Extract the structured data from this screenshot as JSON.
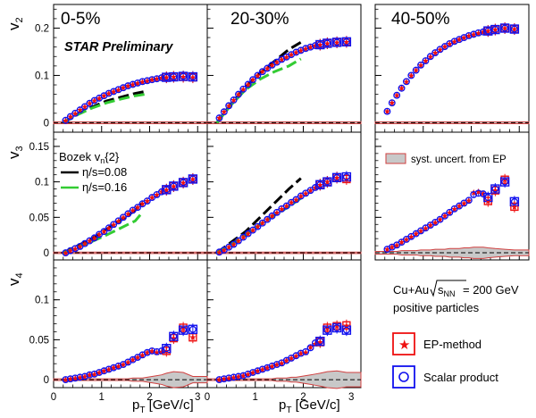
{
  "chart_data": {
    "type": "scatter",
    "panel_titles": [
      "0-5%",
      "20-30%",
      "40-50%"
    ],
    "watermark": "STAR Preliminary",
    "rows": [
      {
        "ylabel_main": "v",
        "ylabel_sub": "2",
        "ylim": [
          -0.02,
          0.25
        ],
        "ticks": [
          0,
          0.1,
          0.2
        ],
        "tick_labels": [
          "0",
          "0.1",
          "0.2"
        ]
      },
      {
        "ylabel_main": "v",
        "ylabel_sub": "3",
        "ylim": [
          -0.01,
          0.17
        ],
        "ticks": [
          0,
          0.05,
          0.1,
          0.15
        ],
        "tick_labels": [
          "0",
          "0.05",
          "0.1",
          "0.15"
        ]
      },
      {
        "ylabel_main": "v",
        "ylabel_sub": "4",
        "ylim": [
          -0.01,
          0.15
        ],
        "ticks": [
          0,
          0.05,
          0.1
        ],
        "tick_labels": [
          "0",
          "0.05",
          "0.1"
        ]
      }
    ],
    "xlim": [
      0,
      3.2
    ],
    "x_ticks": [
      0,
      1,
      2,
      3
    ],
    "x_tick_labels": [
      "0",
      "1",
      "2",
      "3"
    ],
    "xlabel_main": "p",
    "xlabel_sub": "T",
    "xlabel_unit": " [GeV/c]",
    "theory_legend": {
      "title_main": "Bozek v",
      "title_sub": "n",
      "title_tail": "{2}",
      "entries": [
        {
          "label": "η/s=0.08",
          "color": "#000000"
        },
        {
          "label": "η/s=0.16",
          "color": "#33cc33"
        }
      ]
    },
    "syst_legend_label": "syst. uncert. from EP",
    "info_line1": "Cu+Au",
    "info_sqrt": "s",
    "info_sqrt_sub": "NN",
    "info_energy": " = 200 GeV",
    "info_line2": "positive particles",
    "method_legend": [
      {
        "label": "EP-method",
        "color": "#ee1111",
        "marker": "star"
      },
      {
        "label": "Scalar product",
        "color": "#1111ee",
        "marker": "circle"
      }
    ],
    "panels": [
      {
        "row": 0,
        "col": 0,
        "x": [
          0.25,
          0.35,
          0.45,
          0.55,
          0.65,
          0.75,
          0.85,
          0.95,
          1.05,
          1.15,
          1.25,
          1.35,
          1.45,
          1.55,
          1.65,
          1.75,
          1.85,
          1.95,
          2.05,
          2.15,
          2.25,
          2.35,
          2.5,
          2.7,
          2.9
        ],
        "sp": [
          0.005,
          0.013,
          0.02,
          0.027,
          0.034,
          0.041,
          0.047,
          0.052,
          0.057,
          0.062,
          0.066,
          0.07,
          0.074,
          0.078,
          0.081,
          0.084,
          0.087,
          0.089,
          0.091,
          0.093,
          0.095,
          0.096,
          0.097,
          0.098,
          0.097
        ],
        "ep": [
          0.005,
          0.013,
          0.02,
          0.027,
          0.034,
          0.041,
          0.047,
          0.052,
          0.057,
          0.062,
          0.066,
          0.07,
          0.074,
          0.078,
          0.081,
          0.084,
          0.087,
          0.089,
          0.091,
          0.093,
          0.095,
          0.096,
          0.097,
          0.097,
          0.096
        ],
        "theory_black": {
          "x": [
            0.2,
            0.5,
            0.8,
            1.1,
            1.4,
            1.7,
            1.9
          ],
          "y": [
            0.0,
            0.018,
            0.033,
            0.046,
            0.054,
            0.062,
            0.066
          ]
        },
        "theory_green": {
          "x": [
            0.2,
            0.5,
            0.8,
            1.1,
            1.4,
            1.7,
            1.9
          ],
          "y": [
            0.0,
            0.017,
            0.031,
            0.042,
            0.05,
            0.057,
            0.06
          ]
        },
        "band": [
          0.002,
          0.002,
          0.002,
          0.002,
          0.002,
          0.002,
          0.002,
          0.002,
          0.002,
          0.002,
          0.002,
          0.002,
          0.002,
          0.002,
          0.002,
          0.002,
          0.002,
          0.002,
          0.002,
          0.002,
          0.002,
          0.002,
          0.002,
          0.002,
          0.002
        ]
      },
      {
        "row": 0,
        "col": 1,
        "x": [
          0.25,
          0.35,
          0.45,
          0.55,
          0.65,
          0.75,
          0.85,
          0.95,
          1.05,
          1.15,
          1.25,
          1.35,
          1.45,
          1.55,
          1.65,
          1.75,
          1.85,
          1.95,
          2.05,
          2.15,
          2.25,
          2.35,
          2.5,
          2.7,
          2.9
        ],
        "sp": [
          0.01,
          0.023,
          0.036,
          0.048,
          0.06,
          0.071,
          0.081,
          0.091,
          0.1,
          0.108,
          0.115,
          0.122,
          0.128,
          0.134,
          0.139,
          0.144,
          0.149,
          0.153,
          0.157,
          0.16,
          0.163,
          0.165,
          0.168,
          0.17,
          0.171
        ],
        "ep": [
          0.01,
          0.023,
          0.036,
          0.048,
          0.06,
          0.071,
          0.081,
          0.091,
          0.1,
          0.108,
          0.115,
          0.122,
          0.128,
          0.134,
          0.139,
          0.144,
          0.149,
          0.153,
          0.157,
          0.16,
          0.163,
          0.165,
          0.168,
          0.17,
          0.171
        ],
        "theory_black": {
          "x": [
            0.2,
            0.5,
            0.8,
            1.1,
            1.4,
            1.7,
            1.95
          ],
          "y": [
            0.0,
            0.04,
            0.075,
            0.105,
            0.13,
            0.155,
            0.17
          ]
        },
        "theory_green": {
          "x": [
            0.2,
            0.5,
            0.8,
            1.1,
            1.4,
            1.7,
            1.95
          ],
          "y": [
            0.0,
            0.038,
            0.07,
            0.092,
            0.108,
            0.12,
            0.135
          ]
        },
        "band": [
          0.002,
          0.002,
          0.002,
          0.002,
          0.002,
          0.002,
          0.002,
          0.002,
          0.002,
          0.002,
          0.002,
          0.002,
          0.002,
          0.002,
          0.002,
          0.002,
          0.002,
          0.002,
          0.002,
          0.002,
          0.002,
          0.002,
          0.002,
          0.002,
          0.002
        ]
      },
      {
        "row": 0,
        "col": 2,
        "x": [
          0.25,
          0.35,
          0.45,
          0.55,
          0.65,
          0.75,
          0.85,
          0.95,
          1.05,
          1.15,
          1.25,
          1.35,
          1.45,
          1.55,
          1.65,
          1.75,
          1.85,
          1.95,
          2.05,
          2.15,
          2.25,
          2.35,
          2.5,
          2.7,
          2.9
        ],
        "sp": [
          0.024,
          0.042,
          0.058,
          0.073,
          0.087,
          0.1,
          0.111,
          0.122,
          0.131,
          0.14,
          0.148,
          0.155,
          0.161,
          0.167,
          0.172,
          0.176,
          0.18,
          0.184,
          0.187,
          0.19,
          0.192,
          0.194,
          0.197,
          0.2,
          0.198
        ],
        "ep": [
          0.024,
          0.042,
          0.058,
          0.073,
          0.087,
          0.1,
          0.111,
          0.122,
          0.131,
          0.14,
          0.148,
          0.155,
          0.161,
          0.167,
          0.172,
          0.176,
          0.18,
          0.184,
          0.187,
          0.19,
          0.192,
          0.194,
          0.197,
          0.2,
          0.198
        ],
        "band": [
          0.002,
          0.002,
          0.002,
          0.002,
          0.002,
          0.002,
          0.002,
          0.002,
          0.002,
          0.002,
          0.002,
          0.002,
          0.002,
          0.002,
          0.002,
          0.002,
          0.002,
          0.002,
          0.002,
          0.002,
          0.002,
          0.002,
          0.002,
          0.002,
          0.002
        ]
      },
      {
        "row": 1,
        "col": 0,
        "x": [
          0.25,
          0.35,
          0.45,
          0.55,
          0.65,
          0.75,
          0.85,
          0.95,
          1.05,
          1.15,
          1.25,
          1.35,
          1.45,
          1.55,
          1.65,
          1.75,
          1.85,
          1.95,
          2.05,
          2.15,
          2.25,
          2.35,
          2.5,
          2.7,
          2.9
        ],
        "sp": [
          0.0,
          0.003,
          0.006,
          0.009,
          0.013,
          0.017,
          0.021,
          0.026,
          0.03,
          0.035,
          0.04,
          0.045,
          0.05,
          0.055,
          0.06,
          0.064,
          0.069,
          0.073,
          0.078,
          0.082,
          0.086,
          0.089,
          0.094,
          0.099,
          0.104
        ],
        "ep": [
          0.0,
          0.003,
          0.006,
          0.009,
          0.013,
          0.017,
          0.021,
          0.026,
          0.03,
          0.035,
          0.04,
          0.045,
          0.05,
          0.055,
          0.06,
          0.064,
          0.069,
          0.073,
          0.078,
          0.082,
          0.086,
          0.089,
          0.094,
          0.099,
          0.104
        ],
        "theory_black": {
          "x": [
            0.2,
            0.5,
            0.8,
            1.1,
            1.4,
            1.7,
            1.85
          ],
          "y": [
            0.0,
            0.01,
            0.02,
            0.033,
            0.046,
            0.06,
            0.07
          ]
        },
        "theory_green": {
          "x": [
            0.2,
            0.5,
            0.8,
            1.1,
            1.4,
            1.7,
            1.85
          ],
          "y": [
            0.0,
            0.008,
            0.016,
            0.025,
            0.035,
            0.045,
            0.057
          ]
        },
        "band": [
          0.001,
          0.001,
          0.001,
          0.001,
          0.001,
          0.001,
          0.001,
          0.001,
          0.001,
          0.001,
          0.001,
          0.001,
          0.001,
          0.001,
          0.001,
          0.001,
          0.001,
          0.001,
          0.001,
          0.001,
          0.001,
          0.001,
          0.001,
          0.001,
          0.001
        ]
      },
      {
        "row": 1,
        "col": 1,
        "x": [
          0.25,
          0.35,
          0.45,
          0.55,
          0.65,
          0.75,
          0.85,
          0.95,
          1.05,
          1.15,
          1.25,
          1.35,
          1.45,
          1.55,
          1.65,
          1.75,
          1.85,
          1.95,
          2.05,
          2.15,
          2.25,
          2.35,
          2.5,
          2.7,
          2.9
        ],
        "sp": [
          0.001,
          0.004,
          0.008,
          0.012,
          0.017,
          0.022,
          0.027,
          0.032,
          0.037,
          0.042,
          0.047,
          0.052,
          0.057,
          0.062,
          0.066,
          0.071,
          0.075,
          0.08,
          0.084,
          0.088,
          0.092,
          0.096,
          0.1,
          0.106,
          0.107
        ],
        "ep": [
          0.001,
          0.004,
          0.008,
          0.012,
          0.017,
          0.022,
          0.027,
          0.032,
          0.037,
          0.042,
          0.047,
          0.052,
          0.057,
          0.062,
          0.066,
          0.071,
          0.075,
          0.08,
          0.084,
          0.088,
          0.092,
          0.096,
          0.1,
          0.106,
          0.104
        ],
        "theory_black": {
          "x": [
            0.2,
            0.5,
            0.8,
            1.1,
            1.4,
            1.7,
            1.95
          ],
          "y": [
            0.0,
            0.015,
            0.03,
            0.05,
            0.07,
            0.09,
            0.105
          ]
        },
        "theory_green": {
          "x": [
            0.2,
            0.5,
            0.8,
            1.1,
            1.4,
            1.7,
            1.95
          ],
          "y": [
            0.0,
            0.012,
            0.025,
            0.04,
            0.053,
            0.065,
            0.077
          ]
        },
        "band": [
          0.001,
          0.001,
          0.001,
          0.001,
          0.001,
          0.001,
          0.001,
          0.001,
          0.001,
          0.001,
          0.001,
          0.001,
          0.001,
          0.001,
          0.001,
          0.001,
          0.001,
          0.001,
          0.001,
          0.001,
          0.001,
          0.001,
          0.001,
          0.001,
          0.001
        ]
      },
      {
        "row": 1,
        "col": 2,
        "x": [
          0.25,
          0.35,
          0.45,
          0.55,
          0.65,
          0.75,
          0.85,
          0.95,
          1.05,
          1.15,
          1.25,
          1.35,
          1.45,
          1.55,
          1.65,
          1.75,
          1.85,
          1.95,
          2.05,
          2.15,
          2.25,
          2.35,
          2.5,
          2.7,
          2.9
        ],
        "sp": [
          0.005,
          0.008,
          0.011,
          0.015,
          0.019,
          0.023,
          0.027,
          0.031,
          0.035,
          0.039,
          0.043,
          0.047,
          0.052,
          0.057,
          0.062,
          0.066,
          0.07,
          0.074,
          0.082,
          0.084,
          0.083,
          0.078,
          0.09,
          0.1,
          0.072
        ],
        "ep": [
          0.005,
          0.008,
          0.011,
          0.015,
          0.019,
          0.023,
          0.027,
          0.031,
          0.035,
          0.039,
          0.043,
          0.047,
          0.052,
          0.057,
          0.062,
          0.066,
          0.07,
          0.074,
          0.085,
          0.086,
          0.084,
          0.073,
          0.088,
          0.103,
          0.065
        ],
        "band": [
          0.002,
          0.002,
          0.002,
          0.003,
          0.003,
          0.003,
          0.003,
          0.004,
          0.004,
          0.004,
          0.005,
          0.005,
          0.005,
          0.006,
          0.006,
          0.006,
          0.007,
          0.007,
          0.008,
          0.008,
          0.008,
          0.007,
          0.006,
          0.005,
          0.004
        ]
      },
      {
        "row": 2,
        "col": 0,
        "x": [
          0.25,
          0.35,
          0.45,
          0.55,
          0.65,
          0.75,
          0.85,
          0.95,
          1.05,
          1.15,
          1.25,
          1.35,
          1.45,
          1.55,
          1.65,
          1.75,
          1.85,
          1.95,
          2.05,
          2.15,
          2.25,
          2.35,
          2.5,
          2.7,
          2.9
        ],
        "sp": [
          0.0,
          0.001,
          0.002,
          0.003,
          0.004,
          0.006,
          0.007,
          0.009,
          0.011,
          0.013,
          0.015,
          0.017,
          0.019,
          0.022,
          0.025,
          0.028,
          0.031,
          0.034,
          0.036,
          0.035,
          0.036,
          0.039,
          0.054,
          0.062,
          0.063
        ],
        "ep": [
          0.0,
          0.001,
          0.002,
          0.003,
          0.004,
          0.006,
          0.007,
          0.009,
          0.011,
          0.013,
          0.015,
          0.017,
          0.019,
          0.022,
          0.025,
          0.028,
          0.031,
          0.034,
          0.036,
          0.034,
          0.035,
          0.036,
          0.052,
          0.065,
          0.053
        ],
        "band": [
          0.001,
          0.001,
          0.001,
          0.001,
          0.001,
          0.001,
          0.001,
          0.001,
          0.001,
          0.001,
          0.001,
          0.001,
          0.001,
          0.001,
          0.002,
          0.002,
          0.002,
          0.003,
          0.004,
          0.005,
          0.006,
          0.008,
          0.01,
          0.009,
          0.004
        ]
      },
      {
        "row": 2,
        "col": 1,
        "x": [
          0.25,
          0.35,
          0.45,
          0.55,
          0.65,
          0.75,
          0.85,
          0.95,
          1.05,
          1.15,
          1.25,
          1.35,
          1.45,
          1.55,
          1.65,
          1.75,
          1.85,
          1.95,
          2.05,
          2.15,
          2.25,
          2.35,
          2.5,
          2.7,
          2.9
        ],
        "sp": [
          0.0,
          0.001,
          0.002,
          0.003,
          0.004,
          0.005,
          0.007,
          0.009,
          0.011,
          0.013,
          0.015,
          0.017,
          0.019,
          0.021,
          0.024,
          0.027,
          0.03,
          0.033,
          0.035,
          0.04,
          0.046,
          0.048,
          0.062,
          0.065,
          0.062
        ],
        "ep": [
          0.0,
          0.001,
          0.002,
          0.003,
          0.004,
          0.005,
          0.007,
          0.009,
          0.011,
          0.013,
          0.015,
          0.017,
          0.019,
          0.021,
          0.024,
          0.027,
          0.03,
          0.033,
          0.034,
          0.041,
          0.045,
          0.047,
          0.065,
          0.067,
          0.068
        ],
        "band": [
          0.001,
          0.001,
          0.001,
          0.001,
          0.001,
          0.001,
          0.001,
          0.001,
          0.001,
          0.001,
          0.001,
          0.001,
          0.002,
          0.002,
          0.002,
          0.003,
          0.003,
          0.004,
          0.005,
          0.006,
          0.007,
          0.008,
          0.01,
          0.011,
          0.009
        ]
      }
    ]
  }
}
